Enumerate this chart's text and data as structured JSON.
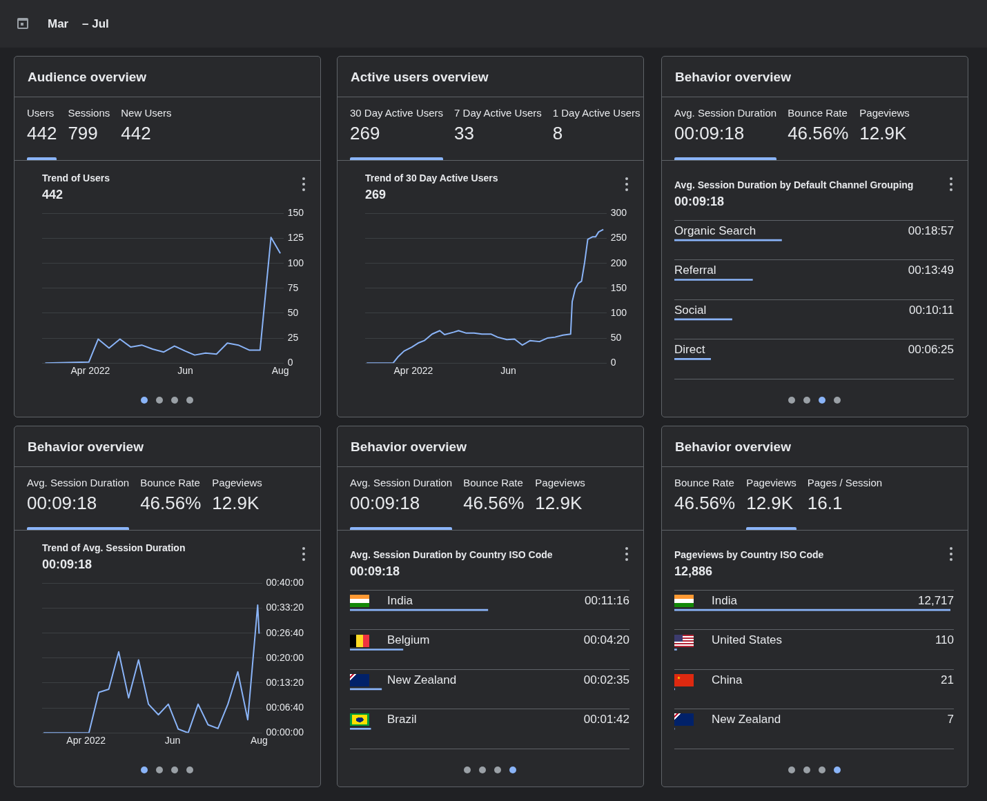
{
  "chart_data": [
    {
      "type": "other",
      "annotations": [
        "Mar",
        "– Jul"
      ]
    },
    {
      "type": "other",
      "title": "Audience overview",
      "annotations": [
        "Users",
        "442",
        "Sessions",
        "799",
        "New Users",
        "442"
      ]
    },
    {
      "type": "line",
      "title": "Trend of Users",
      "subtitle": "442",
      "color": "#8ab4f8",
      "grid": "y",
      "x": [
        "2022-03-03",
        "2022-03-31",
        "2022-04-06",
        "2022-04-13",
        "2022-04-20",
        "2022-04-27",
        "2022-05-04",
        "2022-05-11",
        "2022-05-18",
        "2022-05-25",
        "2022-06-01",
        "2022-06-07",
        "2022-06-14",
        "2022-06-21",
        "2022-06-28",
        "2022-07-05",
        "2022-07-12",
        "2022-07-19",
        "2022-07-26",
        "2022-08-01"
      ],
      "values": [
        0,
        1,
        24,
        15,
        24,
        16,
        18,
        14,
        11,
        17,
        12,
        8,
        10,
        9,
        20,
        18,
        13,
        13,
        126,
        110
      ],
      "xlim": [
        "2022-03-01",
        "2022-08-03"
      ],
      "xticks": [
        {
          "value": "2022-04-01",
          "label": "Apr 2022"
        },
        {
          "value": "2022-06-01",
          "label": "Jun"
        },
        {
          "value": "2022-08-01",
          "label": "Aug"
        }
      ],
      "ylim": [
        0,
        150
      ],
      "yticks": [
        0,
        25,
        50,
        75,
        100,
        125,
        150
      ]
    },
    {
      "type": "other",
      "title": "Active users overview",
      "annotations": [
        "30 Day Active Users",
        "269",
        "7 Day Active Users",
        "33",
        "1 Day Active Users",
        "8"
      ]
    },
    {
      "type": "line",
      "title": "Trend of 30 Day Active Users",
      "subtitle": "269",
      "color": "#8ab4f8",
      "grid": "y",
      "x": [
        "2022-03-02",
        "2022-03-19",
        "2022-03-22",
        "2022-03-26",
        "2022-03-31",
        "2022-04-04",
        "2022-04-08",
        "2022-04-13",
        "2022-04-18",
        "2022-04-21",
        "2022-04-27",
        "2022-04-30",
        "2022-05-05",
        "2022-05-10",
        "2022-05-15",
        "2022-05-21",
        "2022-05-25",
        "2022-05-31",
        "2022-06-05",
        "2022-06-10",
        "2022-06-15",
        "2022-06-21",
        "2022-06-26",
        "2022-07-01",
        "2022-07-06",
        "2022-07-11",
        "2022-07-12",
        "2022-07-14",
        "2022-07-16",
        "2022-07-18",
        "2022-07-20",
        "2022-07-22",
        "2022-07-25",
        "2022-07-27",
        "2022-07-29",
        "2022-08-01"
      ],
      "values": [
        0,
        0,
        12,
        24,
        32,
        40,
        45,
        58,
        65,
        57,
        62,
        65,
        60,
        60,
        58,
        58,
        52,
        47,
        48,
        36,
        45,
        43,
        50,
        52,
        56,
        58,
        123,
        149,
        160,
        164,
        202,
        248,
        253,
        253,
        263,
        268
      ],
      "xlim": [
        "2022-03-01",
        "2022-08-03"
      ],
      "xticks": [
        {
          "value": "2022-04-01",
          "label": "Apr 2022"
        },
        {
          "value": "2022-06-01",
          "label": "Jun"
        }
      ],
      "ylim": [
        0,
        300
      ],
      "yticks": [
        0,
        50,
        100,
        150,
        200,
        250,
        300
      ]
    },
    {
      "type": "other",
      "title": "Behavior overview",
      "annotations": [
        "Avg. Session Duration",
        "00:09:18",
        "Bounce Rate",
        "46.56%",
        "Pageviews",
        "12.9K"
      ]
    },
    {
      "type": "bar",
      "orientation": "horizontal",
      "title": "Avg. Session Duration by Default Channel Grouping",
      "subtitle": "00:09:18",
      "color": "#8ab4f8",
      "grid": "y",
      "tick_labels": false,
      "categories": [
        "Organic Search",
        "Referral",
        "Social",
        "Direct"
      ],
      "values": [
        1137,
        829,
        611,
        385
      ],
      "value_labels": [
        "00:18:57",
        "00:13:49",
        "00:10:11",
        "00:06:25"
      ],
      "xlim": [
        0,
        2962
      ]
    },
    {
      "type": "other",
      "title": "Behavior overview",
      "annotations": [
        "Avg. Session Duration",
        "00:09:18",
        "Bounce Rate",
        "46.56%",
        "Pageviews",
        "12.9K"
      ]
    },
    {
      "type": "line",
      "title": "Trend of Avg. Session Duration",
      "subtitle": "00:09:18",
      "color": "#8ab4f8",
      "grid": "y",
      "x": [
        "2022-03-02",
        "2022-04-03",
        "2022-04-10",
        "2022-04-17",
        "2022-04-24",
        "2022-05-01",
        "2022-05-08",
        "2022-05-15",
        "2022-05-22",
        "2022-05-29",
        "2022-06-05",
        "2022-06-12",
        "2022-06-19",
        "2022-06-26",
        "2022-07-03",
        "2022-07-10",
        "2022-07-17",
        "2022-07-24",
        "2022-07-31",
        "2022-08-01"
      ],
      "values": [
        0,
        0,
        650,
        700,
        1300,
        560,
        1170,
        460,
        290,
        460,
        60,
        0,
        460,
        130,
        70,
        460,
        980,
        210,
        2050,
        1590
      ],
      "xlim": [
        "2022-03-01",
        "2022-08-03"
      ],
      "xticks": [
        {
          "value": "2022-04-01",
          "label": "Apr 2022"
        },
        {
          "value": "2022-06-01",
          "label": "Jun"
        },
        {
          "value": "2022-08-01",
          "label": "Aug"
        }
      ],
      "ylim": [
        0,
        2400
      ],
      "yticks": [
        {
          "value": 0,
          "label": "00:00:00"
        },
        {
          "value": 400,
          "label": "00:06:40"
        },
        {
          "value": 800,
          "label": "00:13:20"
        },
        {
          "value": 1200,
          "label": "00:20:00"
        },
        {
          "value": 1600,
          "label": "00:26:40"
        },
        {
          "value": 2000,
          "label": "00:33:20"
        },
        {
          "value": 2400,
          "label": "00:40:00"
        }
      ]
    },
    {
      "type": "other",
      "title": "Behavior overview",
      "annotations": [
        "Avg. Session Duration",
        "00:09:18",
        "Bounce Rate",
        "46.56%",
        "Pageviews",
        "12.9K"
      ]
    },
    {
      "type": "bar",
      "orientation": "horizontal",
      "title": "Avg. Session Duration by Country ISO Code",
      "subtitle": "00:09:18",
      "color": "#8ab4f8",
      "grid": "y",
      "tick_labels": false,
      "categories": [
        "India",
        "Belgium",
        "New Zealand",
        "Brazil"
      ],
      "values": [
        676,
        260,
        155,
        102
      ],
      "value_labels": [
        "00:11:16",
        "00:04:20",
        "00:02:35",
        "00:01:42"
      ],
      "xlim": [
        0,
        1370
      ]
    },
    {
      "type": "other",
      "title": "Behavior overview",
      "annotations": [
        "Bounce Rate",
        "46.56%",
        "Pageviews",
        "12.9K",
        "Pages / Session",
        "16.1"
      ]
    },
    {
      "type": "bar",
      "orientation": "horizontal",
      "title": "Pageviews by Country ISO Code",
      "subtitle": "12,886",
      "color": "#8ab4f8",
      "grid": "y",
      "tick_labels": false,
      "categories": [
        "India",
        "United States",
        "China",
        "New Zealand"
      ],
      "values": [
        12717,
        110,
        21,
        7
      ],
      "value_labels": [
        "12,717",
        "110",
        "21",
        "7"
      ],
      "xlim": [
        0,
        12886
      ]
    }
  ]
}
